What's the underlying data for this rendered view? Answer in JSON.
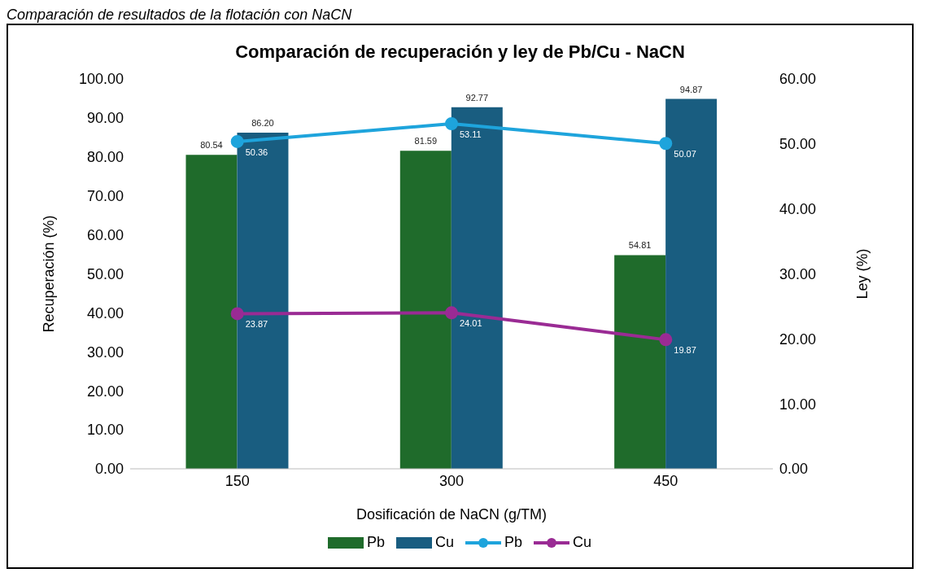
{
  "chart_data": {
    "type": "bar",
    "title": "Comparación de recuperación y ley de Pb/Cu - NaCN",
    "annotations": [
      "Comparación de resultados de la flotación con NaCN"
    ],
    "xlabel": "Dosificación de NaCN (g/TM)",
    "ylabel": "Recuperación (%)",
    "y2label": "Ley (%)",
    "categories": [
      "150",
      "300",
      "450"
    ],
    "series": [
      {
        "name": "Pb",
        "color": "#1f6b2b",
        "values": [
          80.54,
          81.59,
          54.81
        ],
        "value_labels": [
          "80.54",
          "81.59",
          "54.81"
        ]
      },
      {
        "name": "Cu",
        "color": "#195d80",
        "values": [
          86.2,
          92.77,
          94.87
        ],
        "value_labels": [
          "86.20",
          "92.77",
          "94.87"
        ]
      },
      {
        "name": "Pb",
        "type": "line",
        "axis": "y2",
        "color": "#1ea4dc",
        "values": [
          50.36,
          53.11,
          50.07
        ],
        "value_labels": [
          "50.36",
          "53.11",
          "50.07"
        ]
      },
      {
        "name": "Cu",
        "type": "line",
        "axis": "y2",
        "color": "#9a2b94",
        "values": [
          23.87,
          24.01,
          19.87
        ],
        "value_labels": [
          "23.87",
          "24.01",
          "19.87"
        ]
      }
    ],
    "ylim": [
      0,
      100
    ],
    "yticks": [
      {
        "value": 0,
        "label": "0.00"
      },
      {
        "value": 10,
        "label": "10.00"
      },
      {
        "value": 20,
        "label": "20.00"
      },
      {
        "value": 30,
        "label": "30.00"
      },
      {
        "value": 40,
        "label": "40.00"
      },
      {
        "value": 50,
        "label": "50.00"
      },
      {
        "value": 60,
        "label": "60.00"
      },
      {
        "value": 70,
        "label": "70.00"
      },
      {
        "value": 80,
        "label": "80.00"
      },
      {
        "value": 90,
        "label": "90.00"
      },
      {
        "value": 100,
        "label": "100.00"
      }
    ],
    "y2lim": [
      0,
      60
    ],
    "y2ticks": [
      {
        "value": 0,
        "label": "0.00"
      },
      {
        "value": 10,
        "label": "10.00"
      },
      {
        "value": 20,
        "label": "20.00"
      },
      {
        "value": 30,
        "label": "30.00"
      },
      {
        "value": 40,
        "label": "40.00"
      },
      {
        "value": 50,
        "label": "50.00"
      },
      {
        "value": 60,
        "label": "60.00"
      }
    ],
    "grid": false,
    "legend": "bottom",
    "marker": "circle",
    "line_style": "solid"
  }
}
